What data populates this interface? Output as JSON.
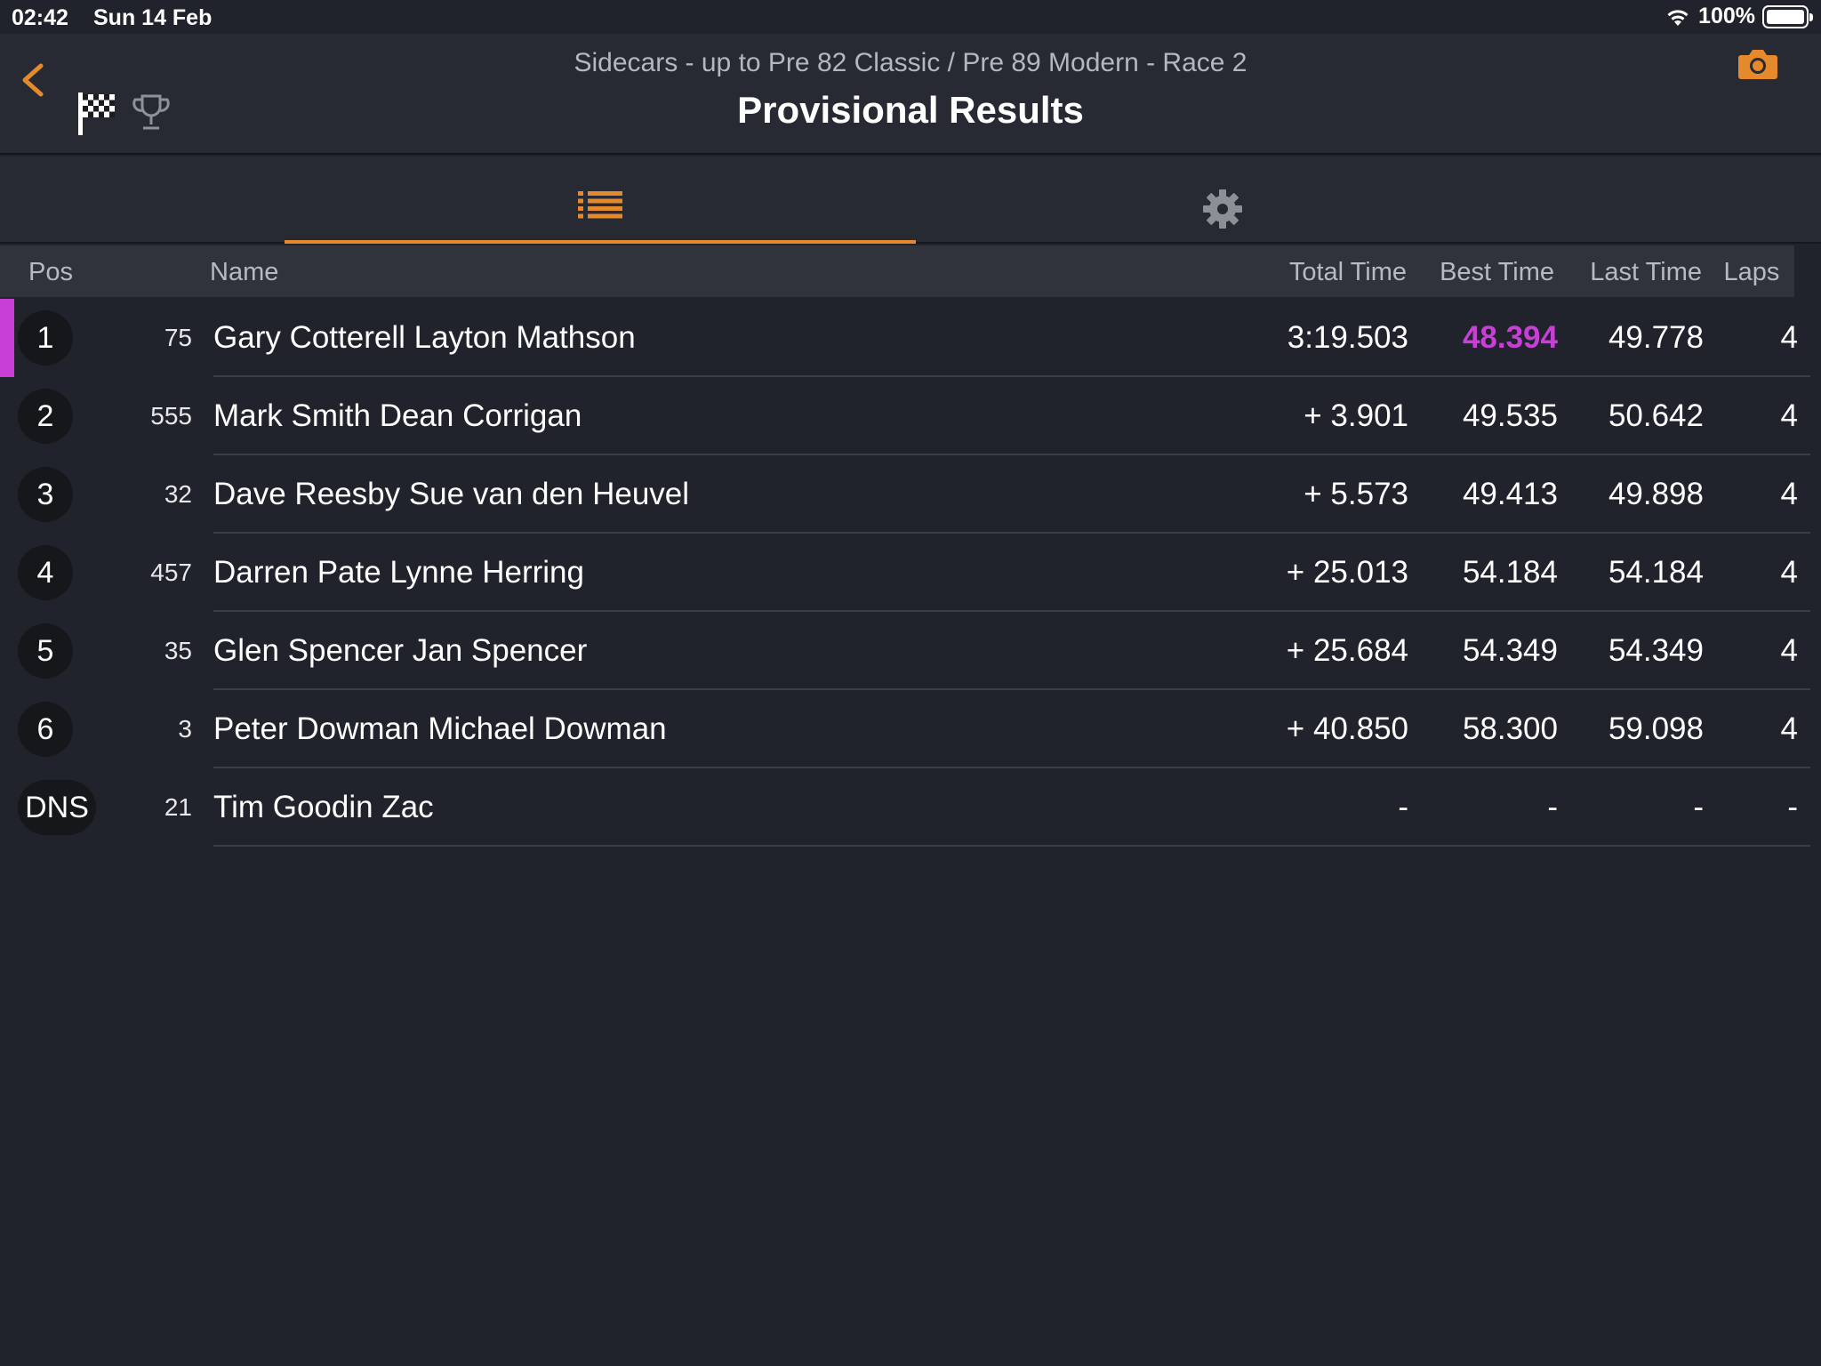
{
  "status_bar": {
    "time": "02:42",
    "date": "Sun 14 Feb",
    "battery": "100%"
  },
  "header": {
    "subtitle": "Sidecars - up to Pre 82 Classic / Pre 89 Modern - Race 2",
    "title": "Provisional Results"
  },
  "colors": {
    "accent": "#e58a2c",
    "fastest": "#c83fd6",
    "background": "#20232c"
  },
  "table": {
    "headers": {
      "pos": "Pos",
      "name": "Name",
      "total": "Total Time",
      "best": "Best Time",
      "last": "Last Time",
      "laps": "Laps"
    },
    "rows": [
      {
        "pos": "1",
        "num": "75",
        "name": "Gary Cotterell Layton Mathson",
        "total": "3:19.503",
        "best": "48.394",
        "last": "49.778",
        "laps": "4"
      },
      {
        "pos": "2",
        "num": "555",
        "name": "Mark Smith Dean Corrigan",
        "total": "+ 3.901",
        "best": "49.535",
        "last": "50.642",
        "laps": "4"
      },
      {
        "pos": "3",
        "num": "32",
        "name": "Dave Reesby Sue van den Heuvel",
        "total": "+ 5.573",
        "best": "49.413",
        "last": "49.898",
        "laps": "4"
      },
      {
        "pos": "4",
        "num": "457",
        "name": "Darren Pate Lynne Herring",
        "total": "+ 25.013",
        "best": "54.184",
        "last": "54.184",
        "laps": "4"
      },
      {
        "pos": "5",
        "num": "35",
        "name": "Glen Spencer Jan Spencer",
        "total": "+ 25.684",
        "best": "54.349",
        "last": "54.349",
        "laps": "4"
      },
      {
        "pos": "6",
        "num": "3",
        "name": "Peter Dowman Michael Dowman",
        "total": "+ 40.850",
        "best": "58.300",
        "last": "59.098",
        "laps": "4"
      },
      {
        "pos": "DNS",
        "num": "21",
        "name": "Tim Goodin Zac",
        "total": "-",
        "best": "-",
        "last": "-",
        "laps": "-"
      }
    ]
  }
}
